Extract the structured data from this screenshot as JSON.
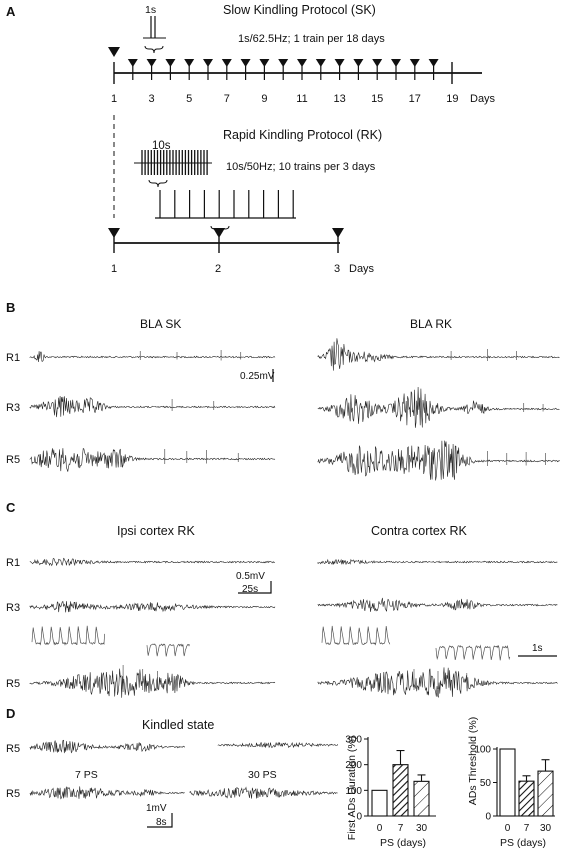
{
  "panel_a": {
    "letter": "A",
    "sk_title": "Slow Kindling Protocol (SK)",
    "sk_params": "1s/62.5Hz; 1 train per 18 days",
    "sk_train_duration": "1s",
    "sk_axis_ticks": [
      "1",
      "3",
      "5",
      "7",
      "9",
      "11",
      "13",
      "15",
      "17",
      "19"
    ],
    "sk_axis_unit": "Days",
    "rk_title": "Rapid Kindling Protocol (RK)",
    "rk_params": "10s/50Hz; 10 trains per 3 days",
    "rk_train_duration": "10s",
    "rk_axis_ticks": [
      "1",
      "2",
      "3"
    ],
    "rk_axis_unit": "Days"
  },
  "panel_b": {
    "letter": "B",
    "left_title": "BLA   SK",
    "right_title": "BLA   RK",
    "rows": [
      "R1",
      "R3",
      "R5"
    ],
    "scale_label": "0.25mV"
  },
  "panel_c": {
    "letter": "C",
    "left_title": "Ipsi cortex RK",
    "right_title": "Contra cortex RK",
    "rows": [
      "R1",
      "R3",
      "R5"
    ],
    "scale_v": "0.5mV",
    "scale_t": "25s",
    "inset_scale": "1s"
  },
  "panel_d": {
    "letter": "D",
    "title": "Kindled state",
    "rows": [
      "R5",
      "R5"
    ],
    "label_7": "7 PS",
    "label_30": "30 PS",
    "scale_v": "1mV",
    "scale_t": "8s"
  },
  "chart_data": [
    {
      "type": "bar",
      "categories": [
        "0",
        "7",
        "30"
      ],
      "values": [
        100,
        200,
        135
      ],
      "errors": [
        0,
        55,
        25
      ],
      "ylabel": "First ADs Duration (%)",
      "xlabel": "PS (days)",
      "ylim": [
        0,
        300
      ],
      "yticks": [
        "0",
        "100",
        "200",
        "300"
      ],
      "fills": [
        "open",
        "dense-hatch",
        "sparse-hatch"
      ]
    },
    {
      "type": "bar",
      "categories": [
        "0",
        "7",
        "30"
      ],
      "values": [
        100,
        52,
        67
      ],
      "errors": [
        0,
        8,
        17
      ],
      "ylabel": "ADs Threshold (%)",
      "xlabel": "PS (days)",
      "ylim": [
        0,
        100
      ],
      "yticks": [
        "0",
        "50",
        "100"
      ],
      "fills": [
        "open",
        "dense-hatch",
        "sparse-hatch"
      ]
    }
  ]
}
